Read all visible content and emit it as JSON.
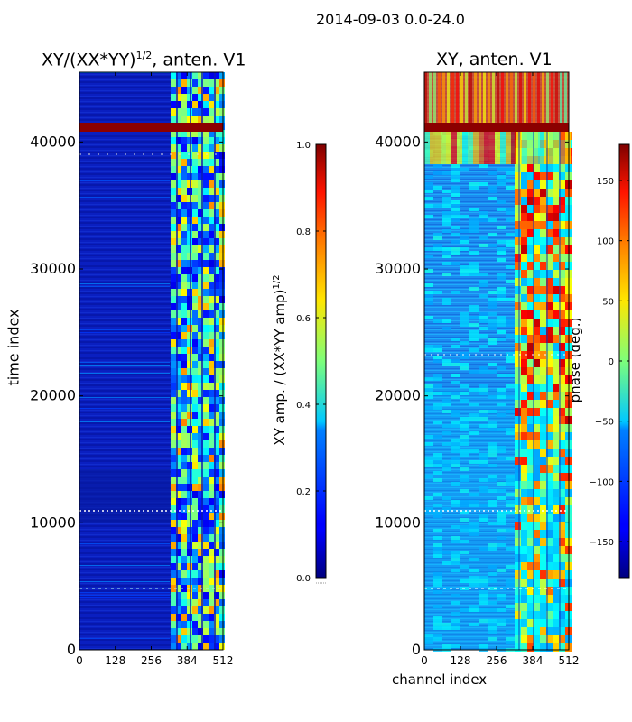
{
  "suptitle": "2014-09-03 0.0-24.0",
  "colors": {
    "accent_band": "#8b0000",
    "frame": "#000000"
  },
  "chart_data": [
    {
      "type": "heatmap",
      "title_base": "XY/(XX*YY)",
      "title_exp": "1/2",
      "title_suffix": ", anten. V1",
      "xlabel": "",
      "ylabel": "time index",
      "xlim": [
        0,
        512
      ],
      "ylim": [
        0,
        45500
      ],
      "xticks": [
        0,
        128,
        256,
        384,
        512
      ],
      "yticks": [
        0,
        10000,
        20000,
        30000,
        40000
      ],
      "colorbar": {
        "label": "XY amp. / (XX*YY amp)",
        "label_exp": "1/2",
        "range": [
          0.0,
          1.0
        ],
        "ticks": [
          "0.0",
          "0.2",
          "0.4",
          "0.6",
          "0.8",
          "1.0"
        ]
      },
      "colormap": "jet",
      "saturated_band": {
        "from": 40700,
        "to": 41400
      }
    },
    {
      "type": "heatmap",
      "title": "XY, anten. V1",
      "xlabel": "channel index",
      "ylabel": "",
      "xlim": [
        0,
        512
      ],
      "ylim": [
        0,
        45500
      ],
      "xticks": [
        0,
        128,
        256,
        384,
        512
      ],
      "yticks": [
        0,
        10000,
        20000,
        30000,
        40000
      ],
      "colorbar": {
        "label": "phase (deg.)",
        "range": [
          -180,
          180
        ],
        "ticks": [
          "150",
          "100",
          "50",
          "0",
          "−50",
          "−100",
          "−150"
        ]
      },
      "colormap": "jet",
      "saturated_band": {
        "from": 40700,
        "to": 41400
      }
    }
  ]
}
